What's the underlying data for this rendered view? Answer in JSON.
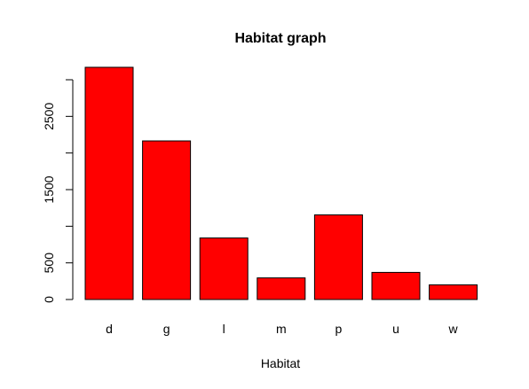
{
  "chart_data": {
    "type": "bar",
    "title": "Habitat graph",
    "xlabel": "Habitat",
    "ylabel": "",
    "categories": [
      "d",
      "g",
      "l",
      "m",
      "p",
      "u",
      "w"
    ],
    "values": [
      3170,
      2165,
      840,
      295,
      1155,
      370,
      200
    ],
    "ylim": [
      0,
      3000
    ],
    "yticks": [
      0,
      500,
      1000,
      1500,
      2000,
      2500,
      3000
    ],
    "ytick_labels": [
      "0",
      "500",
      "",
      "1500",
      "",
      "2500",
      ""
    ],
    "grid": false,
    "legend": "none",
    "bar_color": "#ff0000",
    "bar_border_color": "#000000"
  }
}
